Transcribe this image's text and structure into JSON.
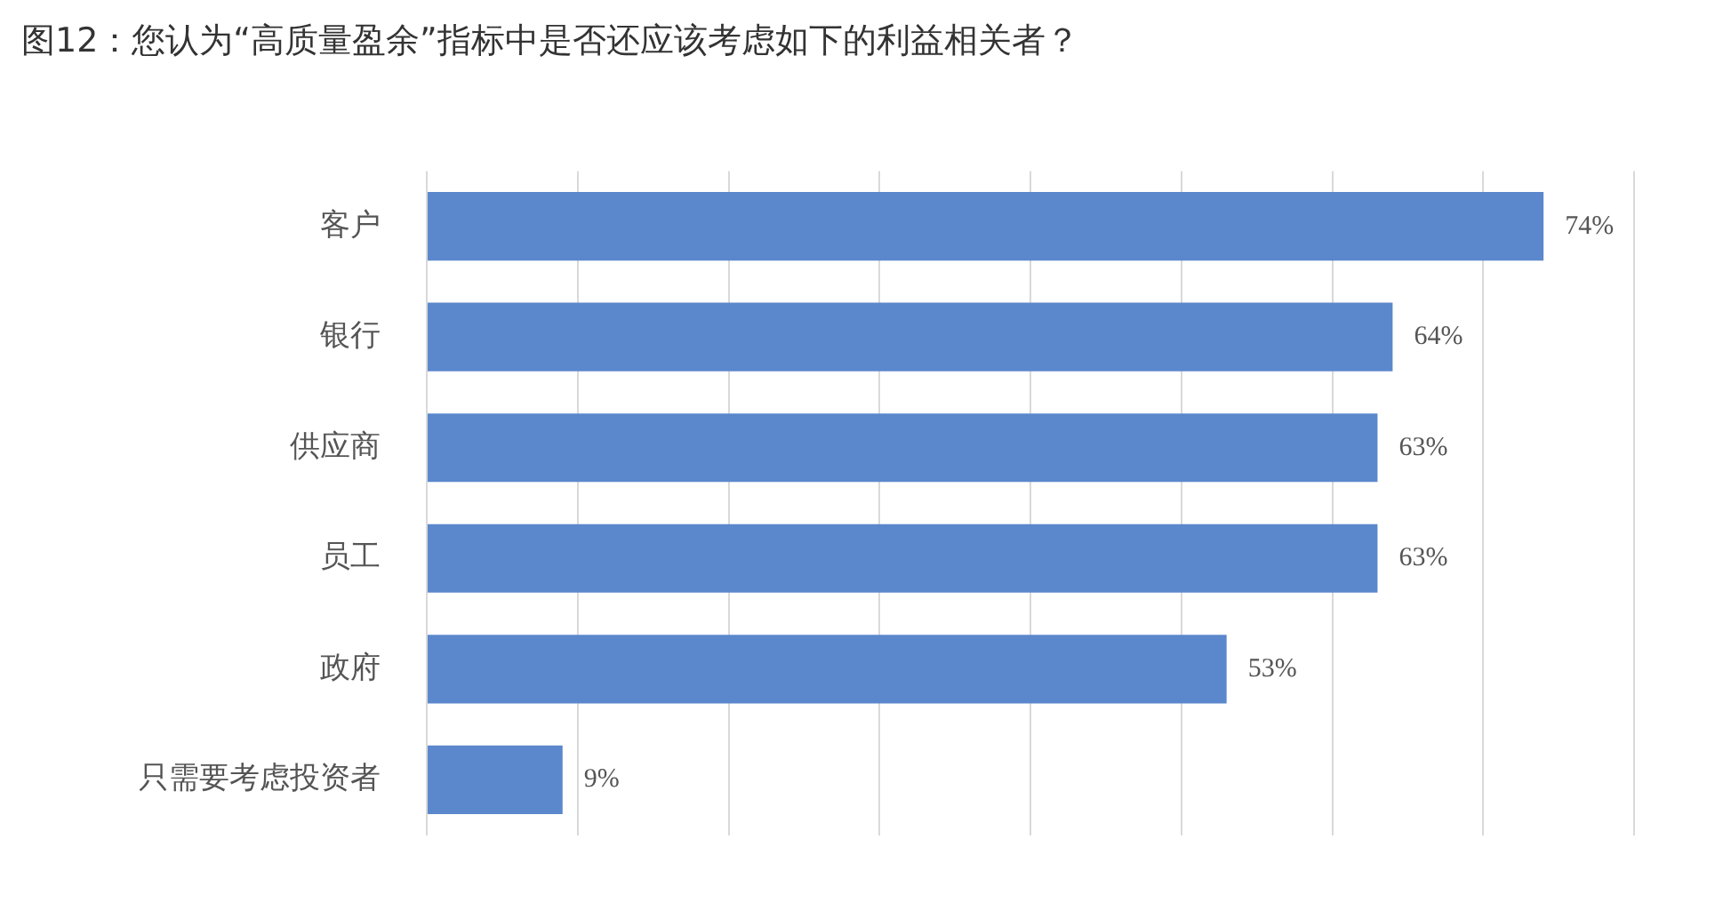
{
  "chart_data": {
    "type": "bar",
    "orientation": "horizontal",
    "title": "图12：您认为“高质量盈余”指标中是否还应该考虑如下的利益相关者？",
    "categories": [
      "客户",
      "银行",
      "供应商",
      "员工",
      "政府",
      "只需要考虑投资者"
    ],
    "values": [
      74,
      64,
      63,
      63,
      53,
      9
    ],
    "value_labels": [
      "74%",
      "64%",
      "63%",
      "63%",
      "53%",
      "9%"
    ],
    "color": "#5b88cc",
    "grid": "x",
    "tick_labels": "y",
    "legend": false
  }
}
